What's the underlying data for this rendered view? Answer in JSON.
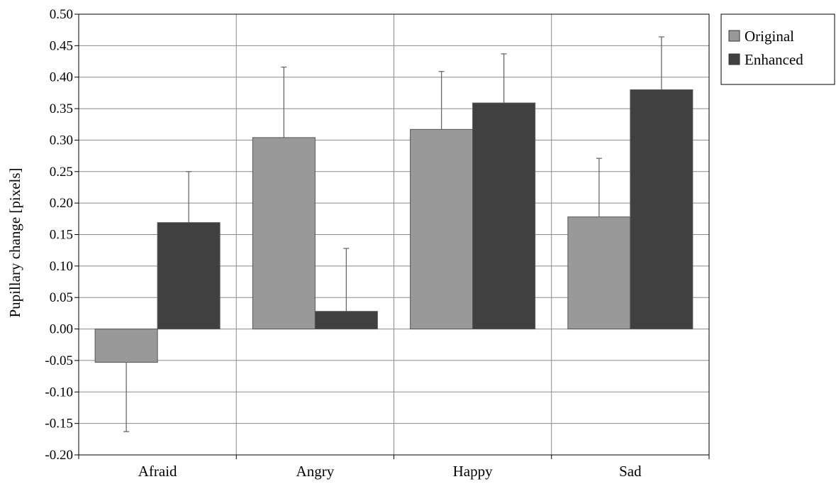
{
  "chart_data": {
    "type": "bar",
    "title": "",
    "xlabel": "",
    "ylabel": "Pupillary change  [pixels]",
    "ylim": [
      -0.2,
      0.5
    ],
    "yticks": [
      "0.50",
      "0.45",
      "0.40",
      "0.35",
      "0.30",
      "0.25",
      "0.20",
      "0.15",
      "0.10",
      "0.05",
      "0.00",
      "-0.05",
      "-0.10",
      "-0.15",
      "-0.20"
    ],
    "categories": [
      "Afraid",
      "Angry",
      "Happy",
      "Sad"
    ],
    "series": [
      {
        "name": "Original",
        "values": [
          -0.053,
          0.304,
          0.317,
          0.178
        ],
        "error": [
          0.11,
          0.112,
          0.092,
          0.093
        ],
        "color": "#999999"
      },
      {
        "name": "Enhanced",
        "values": [
          0.169,
          0.028,
          0.359,
          0.38
        ],
        "error": [
          0.081,
          0.1,
          0.078,
          0.084
        ],
        "color": "#404040"
      }
    ],
    "grid": true,
    "legend_position": "right"
  }
}
